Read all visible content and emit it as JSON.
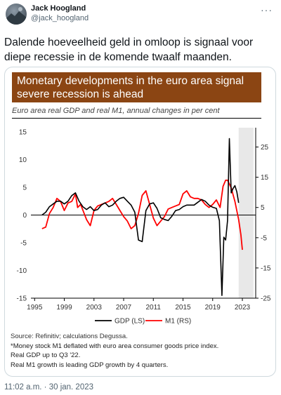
{
  "tweet": {
    "author_name": "Jack Hoogland",
    "author_handle": "@jack_hoogland",
    "text": "Dalende hoeveelheid geld in omloop is signaal voor diepe recessie in de komende twaalf maanden.",
    "timestamp": "11:02 a.m. · 30 jan. 2023",
    "more_icon": "more-icon"
  },
  "figure": {
    "banner_line1": "Monetary developments in the euro area signal",
    "banner_line2": "severe recession is ahead",
    "subtitle": "Euro area real GDP and real M1, annual changes in per cent",
    "source": "Source: Refinitiv; calculations Degussa.",
    "notes": [
      "*Money stock M1 deflated with euro area consumer goods price index.",
      "Real GDP up to Q3 '22.",
      "Real M1 growth is leading GDP growth by 4 quarters."
    ]
  },
  "colors": {
    "banner": "#8b4513",
    "gdp": "#000000",
    "m1": "#ff0000",
    "shade": "#e8e8e8"
  },
  "chart_data": {
    "type": "line",
    "x_ticks": [
      "1995",
      "1999",
      "2003",
      "2007",
      "2011",
      "2015",
      "2019",
      "2023"
    ],
    "y_left_ticks": [
      "15",
      "10",
      "5",
      "0",
      "-5",
      "-10",
      "-15"
    ],
    "y_right_ticks": [
      "25",
      "15",
      "5",
      "-5",
      "-15",
      "-25"
    ],
    "y_left_range": [
      -15,
      15
    ],
    "y_right_range": [
      -25,
      30
    ],
    "shaded_region": [
      2022.5,
      2024.5
    ],
    "series": [
      {
        "name": "GDP (LS)",
        "axis": "left",
        "points": [
          [
            1996.0,
            0.0
          ],
          [
            1996.5,
            0.5
          ],
          [
            1997.0,
            1.5
          ],
          [
            1997.5,
            2.0
          ],
          [
            1998.0,
            2.5
          ],
          [
            1998.5,
            2.5
          ],
          [
            1999.0,
            2.0
          ],
          [
            1999.5,
            2.5
          ],
          [
            2000.0,
            3.5
          ],
          [
            2000.5,
            4.0
          ],
          [
            2001.0,
            2.5
          ],
          [
            2001.5,
            1.5
          ],
          [
            2002.0,
            1.0
          ],
          [
            2002.5,
            1.5
          ],
          [
            2003.0,
            0.8
          ],
          [
            2003.5,
            1.0
          ],
          [
            2004.0,
            1.8
          ],
          [
            2004.5,
            2.2
          ],
          [
            2005.0,
            1.5
          ],
          [
            2005.5,
            1.8
          ],
          [
            2006.0,
            2.5
          ],
          [
            2006.5,
            3.0
          ],
          [
            2007.0,
            3.2
          ],
          [
            2007.5,
            2.5
          ],
          [
            2008.0,
            1.8
          ],
          [
            2008.5,
            0.5
          ],
          [
            2009.0,
            -4.5
          ],
          [
            2009.5,
            -4.8
          ],
          [
            2010.0,
            0.8
          ],
          [
            2010.5,
            2.0
          ],
          [
            2011.0,
            2.2
          ],
          [
            2011.5,
            1.2
          ],
          [
            2012.0,
            -0.5
          ],
          [
            2012.5,
            -0.8
          ],
          [
            2013.0,
            -1.0
          ],
          [
            2013.5,
            -0.2
          ],
          [
            2014.0,
            0.8
          ],
          [
            2014.5,
            1.0
          ],
          [
            2015.0,
            1.5
          ],
          [
            2015.5,
            1.8
          ],
          [
            2016.0,
            1.8
          ],
          [
            2016.5,
            1.8
          ],
          [
            2017.0,
            2.3
          ],
          [
            2017.5,
            2.8
          ],
          [
            2018.0,
            2.5
          ],
          [
            2018.5,
            1.8
          ],
          [
            2019.0,
            1.4
          ],
          [
            2019.5,
            1.2
          ],
          [
            2019.9,
            -1.0
          ],
          [
            2020.25,
            -14.5
          ],
          [
            2020.5,
            -4.0
          ],
          [
            2020.75,
            -4.5
          ],
          [
            2021.0,
            -1.0
          ],
          [
            2021.25,
            13.8
          ],
          [
            2021.5,
            4.0
          ],
          [
            2021.75,
            4.8
          ],
          [
            2022.0,
            5.3
          ],
          [
            2022.25,
            4.2
          ],
          [
            2022.5,
            2.2
          ]
        ]
      },
      {
        "name": "M1 (RS)",
        "axis": "right",
        "points": [
          [
            1996.0,
            -2.0
          ],
          [
            1996.5,
            -1.5
          ],
          [
            1997.0,
            3.0
          ],
          [
            1997.5,
            5.0
          ],
          [
            1998.0,
            8.0
          ],
          [
            1998.5,
            7.0
          ],
          [
            1999.0,
            4.0
          ],
          [
            1999.5,
            6.5
          ],
          [
            2000.0,
            7.0
          ],
          [
            2000.5,
            9.5
          ],
          [
            2000.8,
            5.0
          ],
          [
            2001.2,
            6.0
          ],
          [
            2001.6,
            3.5
          ],
          [
            2002.0,
            1.0
          ],
          [
            2002.5,
            -1.0
          ],
          [
            2003.0,
            4.0
          ],
          [
            2003.5,
            5.5
          ],
          [
            2004.0,
            6.0
          ],
          [
            2004.5,
            6.5
          ],
          [
            2005.0,
            7.0
          ],
          [
            2005.5,
            8.0
          ],
          [
            2006.0,
            6.0
          ],
          [
            2006.5,
            4.0
          ],
          [
            2007.0,
            2.0
          ],
          [
            2007.5,
            0.5
          ],
          [
            2008.0,
            -2.0
          ],
          [
            2008.5,
            -1.0
          ],
          [
            2009.0,
            3.0
          ],
          [
            2009.5,
            9.0
          ],
          [
            2010.0,
            10.5
          ],
          [
            2010.5,
            6.0
          ],
          [
            2011.0,
            1.5
          ],
          [
            2011.5,
            -1.0
          ],
          [
            2012.0,
            0.5
          ],
          [
            2012.5,
            2.0
          ],
          [
            2013.0,
            4.5
          ],
          [
            2013.5,
            5.0
          ],
          [
            2014.0,
            5.5
          ],
          [
            2014.5,
            6.0
          ],
          [
            2015.0,
            9.5
          ],
          [
            2015.5,
            10.5
          ],
          [
            2016.0,
            8.5
          ],
          [
            2016.5,
            8.0
          ],
          [
            2017.0,
            8.0
          ],
          [
            2017.5,
            7.5
          ],
          [
            2018.0,
            6.0
          ],
          [
            2018.5,
            5.0
          ],
          [
            2019.0,
            6.0
          ],
          [
            2019.5,
            7.5
          ],
          [
            2020.0,
            5.0
          ],
          [
            2020.4,
            12.0
          ],
          [
            2020.75,
            14.0
          ],
          [
            2021.0,
            14.0
          ],
          [
            2021.5,
            11.5
          ],
          [
            2022.0,
            7.0
          ],
          [
            2022.5,
            1.0
          ],
          [
            2022.8,
            -4.0
          ],
          [
            2023.0,
            -9.0
          ]
        ]
      }
    ]
  }
}
